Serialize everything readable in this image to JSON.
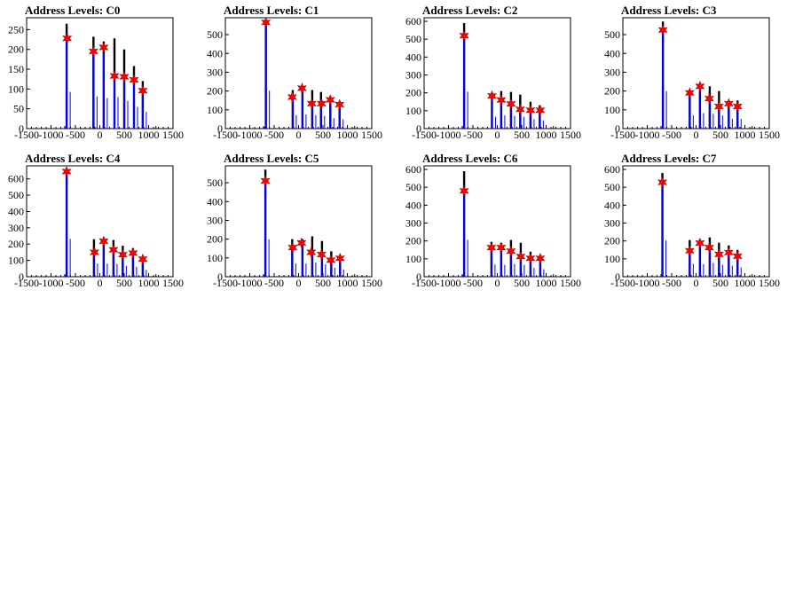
{
  "chart_data": [
    {
      "type": "bar",
      "title": "Address Levels: C0",
      "xlim": [
        -1500,
        1500
      ],
      "ylim": [
        0,
        280
      ],
      "xticks": [
        "-1500",
        "-1000",
        "-500",
        "0",
        "500",
        "1000",
        "1500"
      ],
      "yticks": [
        "0",
        "50",
        "100",
        "150",
        "200",
        "250"
      ],
      "peaks": [
        {
          "x": -680,
          "y": 265
        },
        {
          "x": -130,
          "y": 232
        },
        {
          "x": 80,
          "y": 220
        },
        {
          "x": 300,
          "y": 228
        },
        {
          "x": 500,
          "y": 200
        },
        {
          "x": 700,
          "y": 158
        },
        {
          "x": 880,
          "y": 120
        }
      ],
      "markers": [
        {
          "x": -670,
          "y": 228
        },
        {
          "x": -130,
          "y": 195
        },
        {
          "x": 80,
          "y": 205
        },
        {
          "x": 300,
          "y": 133
        },
        {
          "x": 500,
          "y": 131
        },
        {
          "x": 700,
          "y": 123
        },
        {
          "x": 880,
          "y": 96
        }
      ]
    },
    {
      "type": "bar",
      "title": "Address Levels: C1",
      "xlim": [
        -1500,
        1500
      ],
      "ylim": [
        0,
        590
      ],
      "xticks": [
        "-1500",
        "-1000",
        "-500",
        "0",
        "500",
        "1000",
        "1500"
      ],
      "yticks": [
        "0",
        "100",
        "200",
        "300",
        "400",
        "500"
      ],
      "peaks": [
        {
          "x": -670,
          "y": 575
        },
        {
          "x": -120,
          "y": 205
        },
        {
          "x": 80,
          "y": 215
        },
        {
          "x": 280,
          "y": 205
        },
        {
          "x": 460,
          "y": 195
        },
        {
          "x": 650,
          "y": 160
        },
        {
          "x": 840,
          "y": 140
        }
      ],
      "markers": [
        {
          "x": -670,
          "y": 565
        },
        {
          "x": -130,
          "y": 168
        },
        {
          "x": 70,
          "y": 215
        },
        {
          "x": 270,
          "y": 133
        },
        {
          "x": 470,
          "y": 133
        },
        {
          "x": 650,
          "y": 153
        },
        {
          "x": 840,
          "y": 128
        }
      ]
    },
    {
      "type": "bar",
      "title": "Address Levels: C2",
      "xlim": [
        -1500,
        1500
      ],
      "ylim": [
        0,
        620
      ],
      "xticks": [
        "-1500",
        "-1000",
        "-500",
        "0",
        "500",
        "1000",
        "1500"
      ],
      "yticks": [
        "0",
        "100",
        "200",
        "300",
        "400",
        "500",
        "600"
      ],
      "peaks": [
        {
          "x": -680,
          "y": 590
        },
        {
          "x": -110,
          "y": 190
        },
        {
          "x": 80,
          "y": 210
        },
        {
          "x": 280,
          "y": 205
        },
        {
          "x": 470,
          "y": 190
        },
        {
          "x": 680,
          "y": 150
        },
        {
          "x": 870,
          "y": 130
        }
      ],
      "markers": [
        {
          "x": -680,
          "y": 520
        },
        {
          "x": -110,
          "y": 183
        },
        {
          "x": 80,
          "y": 160
        },
        {
          "x": 280,
          "y": 138
        },
        {
          "x": 470,
          "y": 108
        },
        {
          "x": 680,
          "y": 103
        },
        {
          "x": 880,
          "y": 103
        }
      ]
    },
    {
      "type": "bar",
      "title": "Address Levels: C3",
      "xlim": [
        -1500,
        1500
      ],
      "ylim": [
        0,
        590
      ],
      "xticks": [
        "-1500",
        "-1000",
        "-500",
        "0",
        "500",
        "1000",
        "1500"
      ],
      "yticks": [
        "0",
        "100",
        "200",
        "300",
        "400",
        "500"
      ],
      "peaks": [
        {
          "x": -680,
          "y": 570
        },
        {
          "x": -130,
          "y": 200
        },
        {
          "x": 80,
          "y": 235
        },
        {
          "x": 280,
          "y": 225
        },
        {
          "x": 470,
          "y": 200
        },
        {
          "x": 670,
          "y": 150
        },
        {
          "x": 850,
          "y": 150
        }
      ],
      "markers": [
        {
          "x": -680,
          "y": 525
        },
        {
          "x": -130,
          "y": 190
        },
        {
          "x": 80,
          "y": 225
        },
        {
          "x": 270,
          "y": 160
        },
        {
          "x": 470,
          "y": 118
        },
        {
          "x": 670,
          "y": 133
        },
        {
          "x": 850,
          "y": 118
        }
      ]
    },
    {
      "type": "bar",
      "title": "Address Levels: C4",
      "xlim": [
        -1500,
        1500
      ],
      "ylim": [
        0,
        680
      ],
      "xticks": [
        "-1500",
        "-1000",
        "-500",
        "0",
        "500",
        "1000",
        "1500"
      ],
      "yticks": [
        "0",
        "100",
        "200",
        "300",
        "400",
        "500",
        "600"
      ],
      "peaks": [
        {
          "x": -680,
          "y": 665
        },
        {
          "x": -120,
          "y": 230
        },
        {
          "x": 80,
          "y": 230
        },
        {
          "x": 280,
          "y": 225
        },
        {
          "x": 470,
          "y": 190
        },
        {
          "x": 680,
          "y": 175
        },
        {
          "x": 880,
          "y": 120
        }
      ],
      "markers": [
        {
          "x": -680,
          "y": 645
        },
        {
          "x": -110,
          "y": 150
        },
        {
          "x": 80,
          "y": 218
        },
        {
          "x": 280,
          "y": 165
        },
        {
          "x": 470,
          "y": 135
        },
        {
          "x": 680,
          "y": 145
        },
        {
          "x": 880,
          "y": 108
        }
      ]
    },
    {
      "type": "bar",
      "title": "Address Levels: C5",
      "xlim": [
        -1500,
        1500
      ],
      "ylim": [
        0,
        590
      ],
      "xticks": [
        "-1500",
        "-1000",
        "-500",
        "0",
        "500",
        "1000",
        "1500"
      ],
      "yticks": [
        "0",
        "100",
        "200",
        "300",
        "400",
        "500"
      ],
      "peaks": [
        {
          "x": -680,
          "y": 570
        },
        {
          "x": -130,
          "y": 200
        },
        {
          "x": 80,
          "y": 200
        },
        {
          "x": 280,
          "y": 215
        },
        {
          "x": 480,
          "y": 190
        },
        {
          "x": 670,
          "y": 135
        },
        {
          "x": 850,
          "y": 110
        }
      ],
      "markers": [
        {
          "x": -680,
          "y": 510
        },
        {
          "x": -120,
          "y": 155
        },
        {
          "x": 60,
          "y": 180
        },
        {
          "x": 260,
          "y": 130
        },
        {
          "x": 470,
          "y": 118
        },
        {
          "x": 660,
          "y": 88
        },
        {
          "x": 850,
          "y": 98
        }
      ]
    },
    {
      "type": "bar",
      "title": "Address Levels: C6",
      "xlim": [
        -1500,
        1500
      ],
      "ylim": [
        0,
        620
      ],
      "xticks": [
        "-1500",
        "-1000",
        "-500",
        "0",
        "500",
        "1000",
        "1500"
      ],
      "yticks": [
        "0",
        "100",
        "200",
        "300",
        "400",
        "500",
        "600"
      ],
      "peaks": [
        {
          "x": -680,
          "y": 590
        },
        {
          "x": -120,
          "y": 195
        },
        {
          "x": 80,
          "y": 190
        },
        {
          "x": 280,
          "y": 205
        },
        {
          "x": 480,
          "y": 190
        },
        {
          "x": 680,
          "y": 140
        },
        {
          "x": 880,
          "y": 120
        }
      ],
      "markers": [
        {
          "x": -680,
          "y": 480
        },
        {
          "x": -120,
          "y": 163
        },
        {
          "x": 80,
          "y": 163
        },
        {
          "x": 280,
          "y": 143
        },
        {
          "x": 480,
          "y": 113
        },
        {
          "x": 680,
          "y": 103
        },
        {
          "x": 880,
          "y": 103
        }
      ]
    },
    {
      "type": "bar",
      "title": "Address Levels: C7",
      "xlim": [
        -1500,
        1500
      ],
      "ylim": [
        0,
        620
      ],
      "xticks": [
        "-1500",
        "-1000",
        "-500",
        "0",
        "500",
        "1000",
        "1500"
      ],
      "yticks": [
        "0",
        "100",
        "200",
        "300",
        "400",
        "500",
        "600"
      ],
      "peaks": [
        {
          "x": -690,
          "y": 580
        },
        {
          "x": -130,
          "y": 205
        },
        {
          "x": 80,
          "y": 200
        },
        {
          "x": 280,
          "y": 220
        },
        {
          "x": 470,
          "y": 190
        },
        {
          "x": 670,
          "y": 175
        },
        {
          "x": 850,
          "y": 150
        }
      ],
      "markers": [
        {
          "x": -690,
          "y": 528
        },
        {
          "x": -130,
          "y": 145
        },
        {
          "x": 80,
          "y": 188
        },
        {
          "x": 270,
          "y": 163
        },
        {
          "x": 470,
          "y": 125
        },
        {
          "x": 670,
          "y": 135
        },
        {
          "x": 850,
          "y": 115
        }
      ]
    }
  ],
  "colors": {
    "hist": "#0000ff",
    "outline": "#000000",
    "marker": "#ff0000",
    "background": "#ffffff"
  }
}
